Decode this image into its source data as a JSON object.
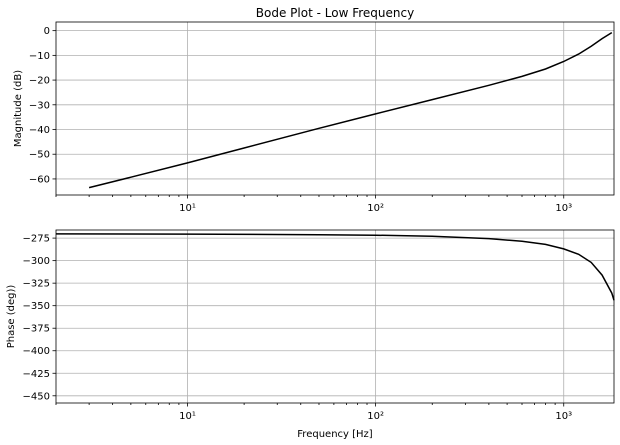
{
  "chart_data": [
    {
      "type": "line",
      "title": "Bode Plot - Low Frequency",
      "xlabel": "",
      "ylabel": "Magnitude (dB)",
      "xscale": "log",
      "xlim": [
        2,
        1850
      ],
      "ylim": [
        -66.5,
        3.5
      ],
      "grid": true,
      "x_ticks": [
        10,
        100,
        1000
      ],
      "x_tick_labels": [
        "10¹",
        "10²",
        "10³"
      ],
      "y_ticks": [
        0,
        -10,
        -20,
        -30,
        -40,
        -50,
        -60
      ],
      "y_tick_labels": [
        "0",
        "−10",
        "−20",
        "−30",
        "−40",
        "−50",
        "−60"
      ],
      "series": [
        {
          "x": [
            3,
            5,
            10,
            20,
            50,
            100,
            200,
            400,
            600,
            800,
            1000,
            1200,
            1400,
            1600,
            1800
          ],
          "values": [
            -63.5,
            -59.3,
            -53.5,
            -47.5,
            -39.5,
            -33.7,
            -27.9,
            -22.1,
            -18.5,
            -15.5,
            -12.5,
            -9.5,
            -6.3,
            -3.2,
            -0.8
          ]
        }
      ]
    },
    {
      "type": "line",
      "title": "",
      "xlabel": "Frequency [Hz]",
      "ylabel": "Phase (deg))",
      "xscale": "log",
      "xlim": [
        2,
        1850
      ],
      "ylim": [
        -458,
        -266
      ],
      "grid": true,
      "x_ticks": [
        10,
        100,
        1000
      ],
      "x_tick_labels": [
        "10¹",
        "10²",
        "10³"
      ],
      "y_ticks": [
        -275,
        -300,
        -325,
        -350,
        -375,
        -400,
        -425,
        -450
      ],
      "y_tick_labels": [
        "−275",
        "−300",
        "−325",
        "−350",
        "−375",
        "−400",
        "−425",
        "−450"
      ],
      "series": [
        {
          "x": [
            2,
            10,
            50,
            100,
            200,
            400,
            600,
            800,
            1000,
            1200,
            1400,
            1600,
            1800,
            1850
          ],
          "values": [
            -270.3,
            -270.5,
            -271.2,
            -271.8,
            -273.0,
            -275.5,
            -278.5,
            -282.0,
            -287.0,
            -293.0,
            -302.0,
            -316.0,
            -336.0,
            -344.0
          ]
        }
      ]
    }
  ]
}
